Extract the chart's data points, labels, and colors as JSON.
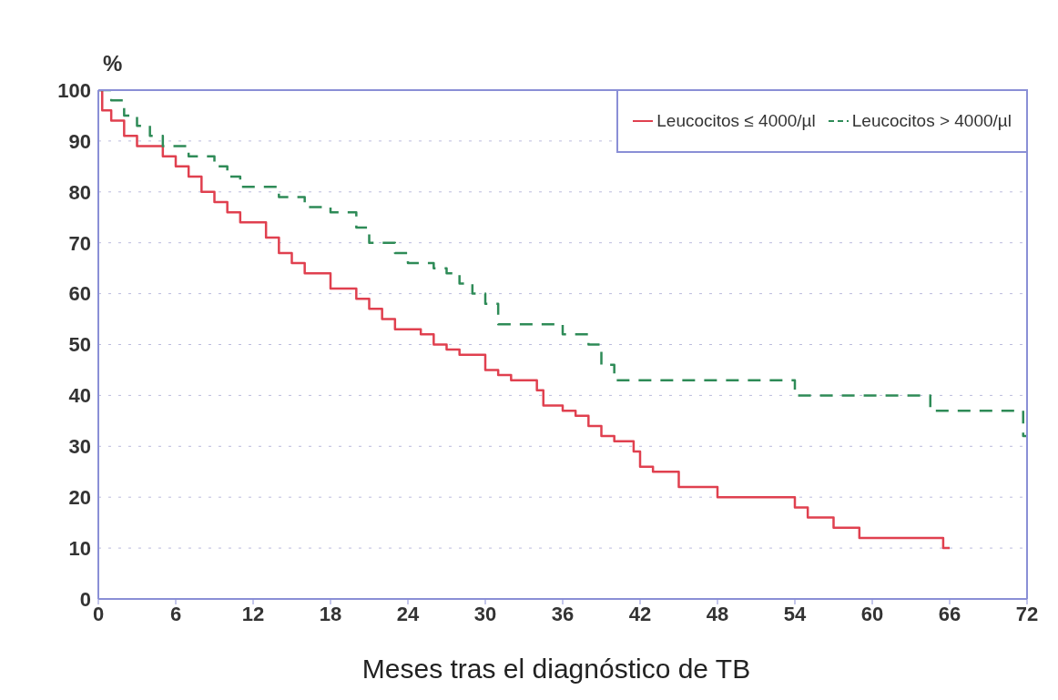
{
  "chart_data": {
    "type": "step",
    "ylabel": "%",
    "xlabel": "Meses tras el diagnóstico de TB",
    "xlim": [
      0,
      72
    ],
    "xticks": [
      0,
      6,
      12,
      18,
      24,
      30,
      36,
      42,
      48,
      54,
      60,
      66,
      72
    ],
    "ylim": [
      0,
      100
    ],
    "yticks": [
      0,
      10,
      20,
      30,
      40,
      50,
      60,
      70,
      80,
      90,
      100
    ],
    "grid": "y",
    "legend": "top right",
    "marker": "none",
    "series": [
      {
        "name": "Leucocitos ≤ 4000/µl",
        "color": "#e0404f",
        "line_style": "solid",
        "x": [
          0,
          0.3,
          1,
          2,
          3,
          5,
          6,
          7,
          8,
          9,
          10,
          11,
          13,
          14,
          15,
          16,
          18,
          20,
          21,
          22,
          23,
          25,
          26,
          27,
          28,
          30,
          31,
          32,
          34,
          34.5,
          36,
          37,
          38,
          39,
          40,
          41.5,
          42,
          43,
          45,
          48,
          54,
          55,
          57,
          59,
          65.5,
          66
        ],
        "values": [
          100,
          96,
          94,
          91,
          89,
          87,
          85,
          83,
          80,
          78,
          76,
          74,
          71,
          68,
          66,
          64,
          61,
          59,
          57,
          55,
          53,
          52,
          50,
          49,
          48,
          45,
          44,
          43,
          41,
          38,
          37,
          36,
          34,
          32,
          31,
          29,
          26,
          25,
          22,
          20,
          18,
          16,
          14,
          12,
          10,
          10
        ]
      },
      {
        "name": "Leucocitos > 4000/µl",
        "color": "#2e8b57",
        "line_style": "dashed",
        "x": [
          0,
          1,
          2,
          3,
          4,
          5,
          7,
          9,
          10,
          11,
          14,
          16,
          18,
          20,
          21,
          23,
          24,
          26,
          27,
          28,
          29,
          30,
          31,
          36,
          38,
          39,
          40,
          54,
          64.5,
          71.7,
          72
        ],
        "values": [
          100,
          98,
          95,
          93,
          91,
          89,
          87,
          85,
          83,
          81,
          79,
          77,
          76,
          73,
          70,
          68,
          66,
          65,
          64,
          62,
          60,
          58,
          54,
          52,
          50,
          46,
          43,
          40,
          37,
          32,
          32
        ]
      }
    ]
  }
}
